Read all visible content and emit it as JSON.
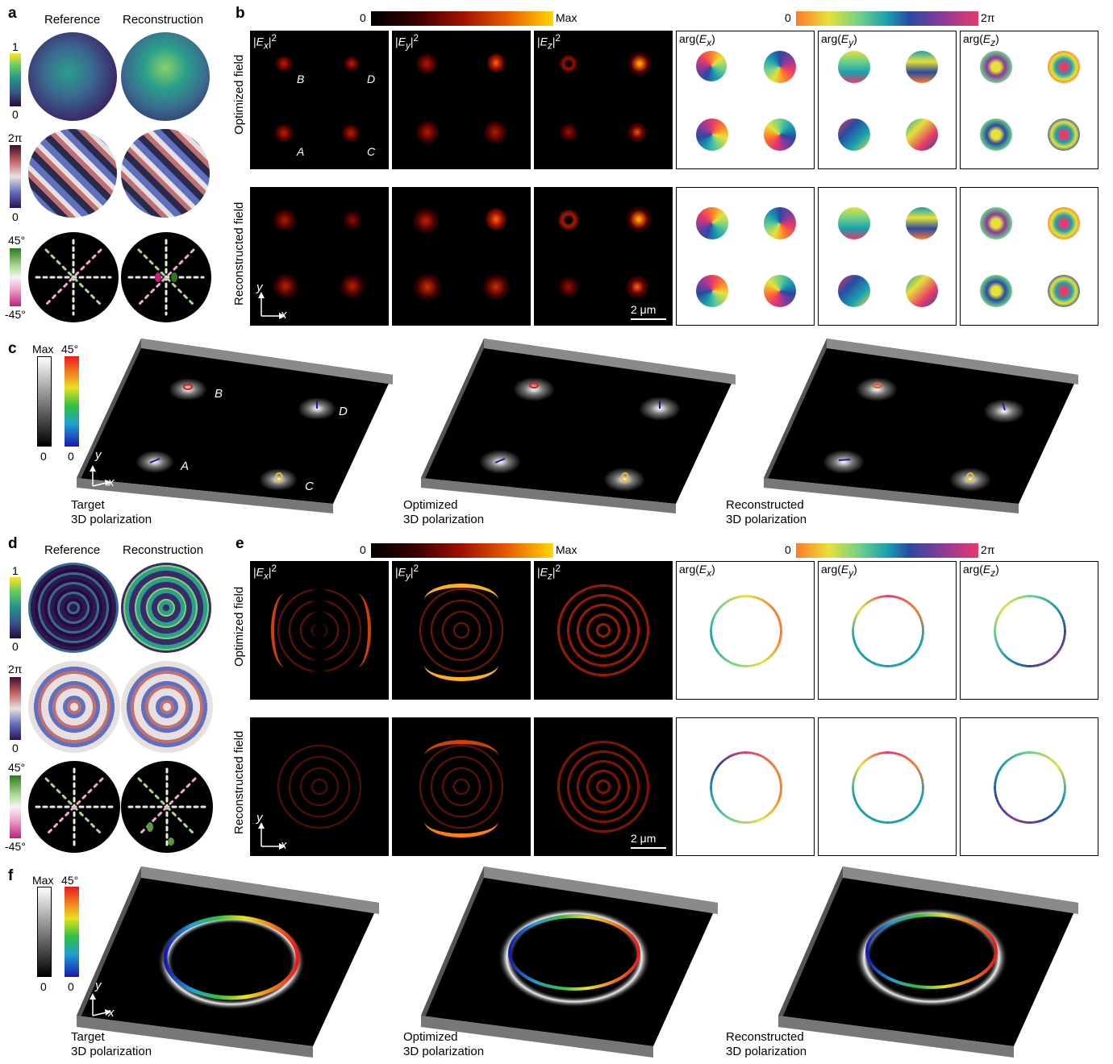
{
  "panels": {
    "a": "a",
    "b": "b",
    "c": "c",
    "d": "d",
    "e": "e",
    "f": "f"
  },
  "col_headers": {
    "reference": "Reference",
    "reconstruction": "Reconstruction"
  },
  "colorbars": {
    "amp_top": "1",
    "amp_bottom": "0",
    "phase_top": "2π",
    "phase_bottom": "0",
    "angle_top": "45°",
    "angle_bottom": "-45°",
    "heat_left": "0",
    "heat_right": "Max",
    "cyc_left": "0",
    "cyc_right": "2π",
    "gray_top": "Max",
    "gray_bottom": "0",
    "jet_top": "45°",
    "jet_bottom": "0"
  },
  "row_labels": {
    "optimized": "Optimized field",
    "reconstructed": "Reconstructed field"
  },
  "field_labels": {
    "abs": "|",
    "ex_sub": "x",
    "ey_sub": "y",
    "ez_sub": "z",
    "E": "E",
    "sq": "2",
    "arg_open": "arg(",
    "arg_close": ")"
  },
  "spot_labels": {
    "A": "A",
    "B": "B",
    "C": "C",
    "D": "D"
  },
  "axes": {
    "x": "x",
    "y": "y"
  },
  "scale": "2 μm",
  "captions_3d": {
    "target_1": "Target",
    "target_2": "3D polarization",
    "optimized_1": "Optimized",
    "optimized_2": "3D polarization",
    "reconstructed_1": "Reconstructed",
    "reconstructed_2": "3D polarization"
  }
}
